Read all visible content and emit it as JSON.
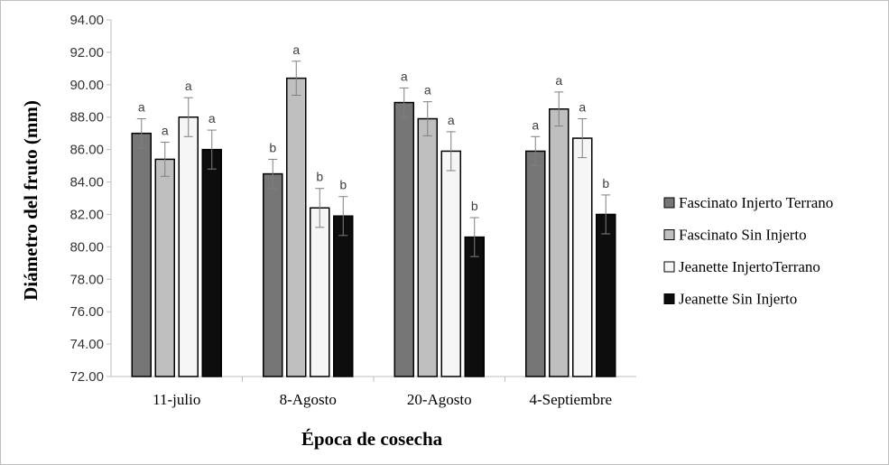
{
  "chart_data": {
    "type": "bar",
    "title": "",
    "xlabel": "Época de cosecha",
    "ylabel": "Diámetro del fruto (mm)",
    "ylim": [
      72,
      94
    ],
    "ytick_step": 2,
    "ytick_labels": [
      "72.00",
      "74.00",
      "76.00",
      "78.00",
      "80.00",
      "82.00",
      "84.00",
      "86.00",
      "88.00",
      "90.00",
      "92.00",
      "94.00"
    ],
    "legend_position": "right",
    "categories": [
      "11-julio",
      "8-Agosto",
      "20-Agosto",
      "4-Septiembre"
    ],
    "series": [
      {
        "name": "Fascinato Injerto Terrano",
        "color": "#767676",
        "values": [
          87.0,
          84.5,
          88.9,
          85.9
        ],
        "errors": [
          0.9,
          0.9,
          0.9,
          0.9
        ],
        "letters": [
          "a",
          "b",
          "a",
          "a"
        ]
      },
      {
        "name": "Fascinato Sin Injerto",
        "color": "#bfbfbf",
        "values": [
          85.4,
          90.4,
          87.9,
          88.5
        ],
        "errors": [
          1.05,
          1.05,
          1.05,
          1.05
        ],
        "letters": [
          "a",
          "a",
          "a",
          "a"
        ]
      },
      {
        "name": "Jeanette InjertoTerrano",
        "color": "#f6f6f6",
        "values": [
          88.0,
          82.4,
          85.9,
          86.7
        ],
        "errors": [
          1.2,
          1.2,
          1.2,
          1.2
        ],
        "letters": [
          "a",
          "b",
          "a",
          "a"
        ]
      },
      {
        "name": "Jeanette Sin Injerto",
        "color": "#0d0d0d",
        "values": [
          86.0,
          81.9,
          80.6,
          82.0
        ],
        "errors": [
          1.2,
          1.2,
          1.2,
          1.2
        ],
        "letters": [
          "a",
          "b",
          "b",
          "b"
        ]
      }
    ]
  }
}
